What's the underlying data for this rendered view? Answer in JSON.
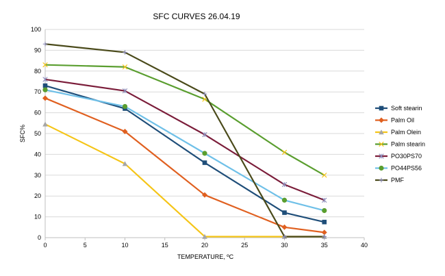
{
  "chart_data": {
    "type": "line",
    "title": "SFC CURVES 26.04.19",
    "xlabel": "TEMPERATURE, ºC",
    "ylabel": "SFC%",
    "xlim": [
      0,
      40
    ],
    "ylim": [
      0,
      100
    ],
    "xticks": [
      0,
      5,
      10,
      15,
      20,
      25,
      30,
      35,
      40
    ],
    "yticks": [
      0,
      10,
      20,
      30,
      40,
      50,
      60,
      70,
      80,
      90,
      100
    ],
    "grid": "horizontal",
    "legend_position": "right",
    "x": [
      0,
      10,
      20,
      30,
      35
    ],
    "series": [
      {
        "name": "Soft stearin",
        "color": "#1f4e79",
        "marker": "square",
        "values": [
          73,
          62,
          36,
          12,
          7.5
        ]
      },
      {
        "name": "Palm Oil",
        "color": "#e06020",
        "marker": "diamond",
        "values": [
          67,
          51,
          20.5,
          5,
          2.5
        ]
      },
      {
        "name": "Palm Olein",
        "color": "#f5c518",
        "marker": "triangle",
        "values": [
          54.5,
          35.5,
          0.5,
          0.5,
          0.5
        ]
      },
      {
        "name": "Palm stearin",
        "color": "#5a9e2f",
        "marker": "x",
        "values": [
          83,
          82,
          66.5,
          41,
          30
        ]
      },
      {
        "name": "PO30PS70",
        "color": "#7b1d3a",
        "marker": "asterisk",
        "values": [
          76,
          70.5,
          49.5,
          25.5,
          18
        ]
      },
      {
        "name": "PO44PS56",
        "color": "#6fc0e8",
        "marker": "circle",
        "values": [
          71,
          63,
          40.5,
          18,
          13
        ]
      },
      {
        "name": "PMF",
        "color": "#4a4a1a",
        "marker": "plus",
        "values": [
          93,
          89,
          69,
          0.5,
          0.5
        ]
      }
    ]
  }
}
